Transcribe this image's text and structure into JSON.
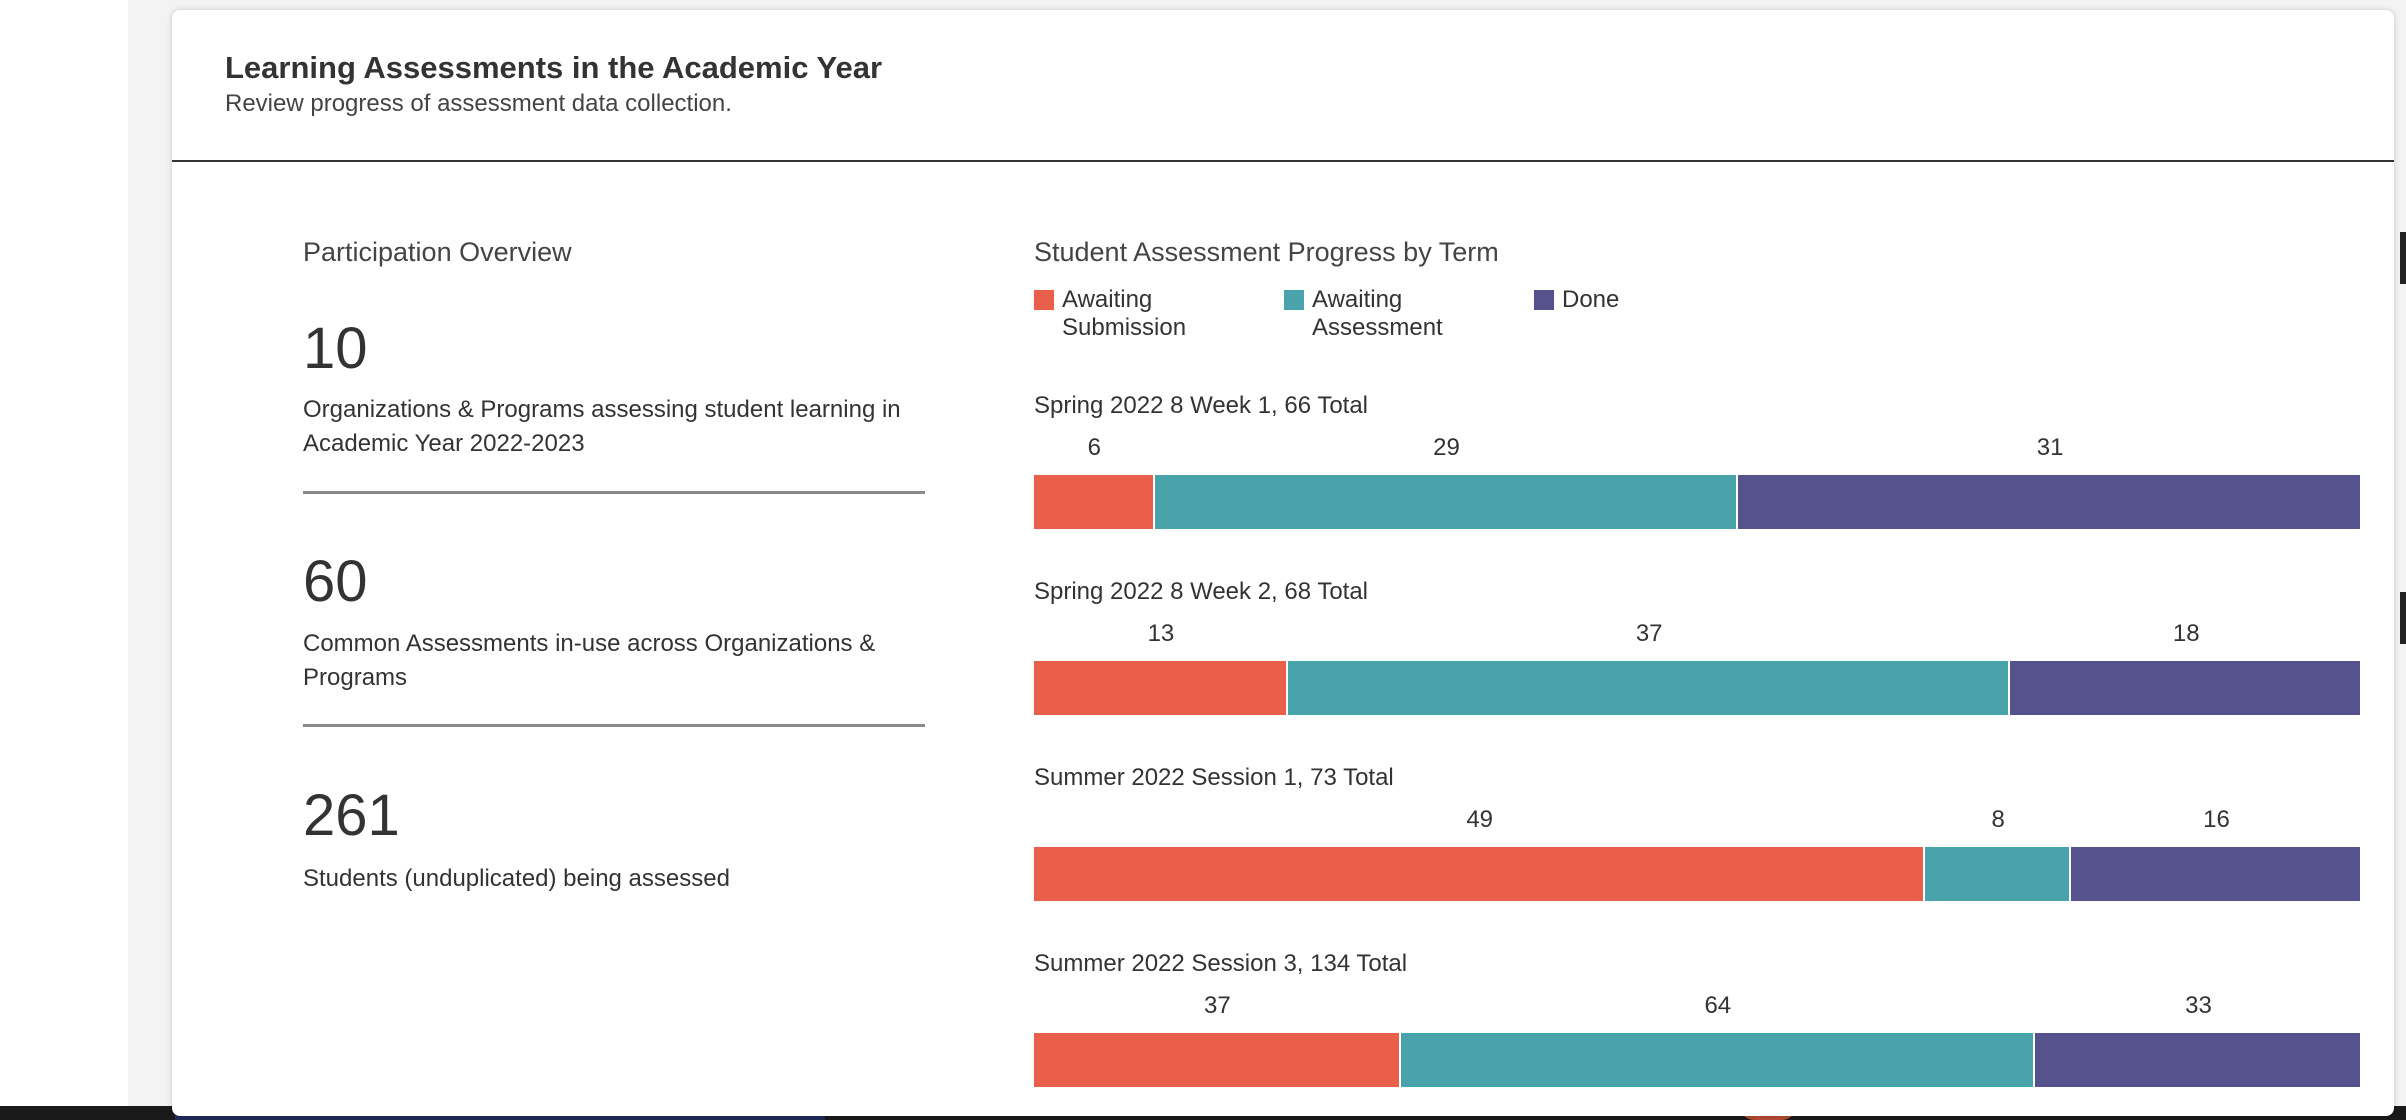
{
  "dialog": {
    "title": "Learning Assessments in the Academic Year",
    "subtitle": "Review progress of assessment data collection."
  },
  "participation": {
    "title": "Participation Overview",
    "stats": [
      {
        "value": "10",
        "description": "Organizations & Programs assessing student learning in Academic Year 2022-2023"
      },
      {
        "value": "60",
        "description": "Common Assessments in-use across Organizations & Programs"
      },
      {
        "value": "261",
        "description": "Students (unduplicated) being assessed"
      }
    ]
  },
  "colors": {
    "awaiting_submission": "#e95f4a",
    "awaiting_assessment": "#48a3aa",
    "done": "#56528e"
  },
  "chart_data": {
    "type": "bar",
    "orientation": "horizontal-stacked",
    "title": "Student Assessment Progress by Term",
    "legend": {
      "placement": "top-left",
      "entries": [
        {
          "label": "Awaiting\nSubmission",
          "color": "#e95f4a"
        },
        {
          "label": "Awaiting\nAssessment",
          "color": "#48a3aa"
        },
        {
          "label": "Done",
          "color": "#56528e"
        }
      ]
    },
    "categories": [
      "Spring 2022 8 Week 1, 66 Total",
      "Spring 2022 8 Week 2, 68 Total",
      "Summer 2022 Session 1, 73 Total",
      "Summer 2022 Session 3, 134 Total"
    ],
    "series": [
      {
        "name": "Awaiting Submission",
        "values": [
          6,
          13,
          49,
          37
        ]
      },
      {
        "name": "Awaiting Assessment",
        "values": [
          29,
          37,
          8,
          64
        ]
      },
      {
        "name": "Done",
        "values": [
          31,
          18,
          16,
          33
        ]
      }
    ],
    "normalized": true,
    "grid": false
  }
}
